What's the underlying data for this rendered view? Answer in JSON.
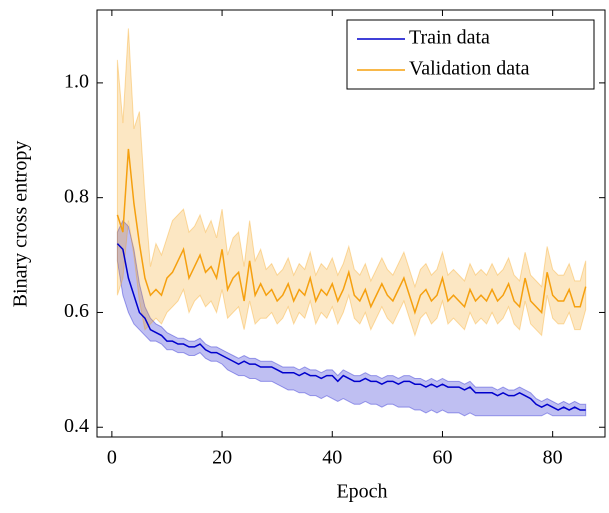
{
  "chart_data": {
    "type": "line",
    "xlabel": "Epoch",
    "ylabel": "Binary cross entropy",
    "xlim": [
      -2.7,
      89.5
    ],
    "ylim": [
      0.383,
      1.127
    ],
    "xticks": [
      0,
      20,
      40,
      60,
      80
    ],
    "yticks": [
      0.4,
      0.6,
      0.8,
      {
        "value": 1,
        "label": "1.0"
      }
    ],
    "legend": "upper right",
    "x": [
      1,
      2,
      3,
      4,
      5,
      6,
      7,
      8,
      9,
      10,
      11,
      12,
      13,
      14,
      15,
      16,
      17,
      18,
      19,
      20,
      21,
      22,
      23,
      24,
      25,
      26,
      27,
      28,
      29,
      30,
      31,
      32,
      33,
      34,
      35,
      36,
      37,
      38,
      39,
      40,
      41,
      42,
      43,
      44,
      45,
      46,
      47,
      48,
      49,
      50,
      51,
      52,
      53,
      54,
      55,
      56,
      57,
      58,
      59,
      60,
      61,
      62,
      63,
      64,
      65,
      66,
      67,
      68,
      69,
      70,
      71,
      72,
      73,
      74,
      75,
      76,
      77,
      78,
      79,
      80,
      81,
      82,
      83,
      84,
      85,
      86
    ],
    "series": [
      {
        "name": "Train data",
        "color": "#0000cc",
        "values": [
          0.72,
          0.71,
          0.66,
          0.63,
          0.6,
          0.59,
          0.57,
          0.565,
          0.56,
          0.55,
          0.55,
          0.545,
          0.545,
          0.54,
          0.54,
          0.545,
          0.535,
          0.53,
          0.53,
          0.525,
          0.52,
          0.515,
          0.51,
          0.515,
          0.51,
          0.51,
          0.505,
          0.505,
          0.505,
          0.5,
          0.495,
          0.495,
          0.495,
          0.49,
          0.495,
          0.49,
          0.49,
          0.485,
          0.49,
          0.49,
          0.48,
          0.49,
          0.485,
          0.48,
          0.48,
          0.485,
          0.48,
          0.48,
          0.475,
          0.48,
          0.48,
          0.475,
          0.48,
          0.48,
          0.475,
          0.475,
          0.47,
          0.475,
          0.47,
          0.475,
          0.47,
          0.47,
          0.47,
          0.465,
          0.47,
          0.46,
          0.46,
          0.46,
          0.46,
          0.455,
          0.46,
          0.455,
          0.455,
          0.46,
          0.455,
          0.45,
          0.44,
          0.435,
          0.44,
          0.435,
          0.43,
          0.435,
          0.43,
          0.435,
          0.43,
          0.43
        ],
        "upper": [
          0.74,
          0.76,
          0.75,
          0.71,
          0.65,
          0.61,
          0.59,
          0.58,
          0.575,
          0.565,
          0.56,
          0.555,
          0.555,
          0.55,
          0.55,
          0.555,
          0.545,
          0.54,
          0.54,
          0.535,
          0.53,
          0.525,
          0.52,
          0.525,
          0.52,
          0.52,
          0.515,
          0.515,
          0.515,
          0.51,
          0.505,
          0.505,
          0.505,
          0.5,
          0.505,
          0.5,
          0.5,
          0.495,
          0.5,
          0.5,
          0.49,
          0.5,
          0.495,
          0.49,
          0.49,
          0.495,
          0.49,
          0.49,
          0.485,
          0.49,
          0.49,
          0.485,
          0.49,
          0.49,
          0.485,
          0.485,
          0.48,
          0.485,
          0.48,
          0.485,
          0.48,
          0.48,
          0.48,
          0.475,
          0.48,
          0.47,
          0.47,
          0.47,
          0.47,
          0.465,
          0.47,
          0.465,
          0.465,
          0.47,
          0.465,
          0.46,
          0.45,
          0.445,
          0.45,
          0.445,
          0.44,
          0.445,
          0.44,
          0.445,
          0.44,
          0.44
        ],
        "lower": [
          0.69,
          0.63,
          0.6,
          0.58,
          0.57,
          0.56,
          0.55,
          0.55,
          0.545,
          0.535,
          0.535,
          0.53,
          0.53,
          0.525,
          0.525,
          0.53,
          0.52,
          0.515,
          0.515,
          0.51,
          0.5,
          0.495,
          0.49,
          0.49,
          0.485,
          0.485,
          0.48,
          0.48,
          0.48,
          0.475,
          0.47,
          0.465,
          0.465,
          0.46,
          0.46,
          0.455,
          0.455,
          0.45,
          0.455,
          0.45,
          0.445,
          0.45,
          0.445,
          0.44,
          0.44,
          0.445,
          0.44,
          0.44,
          0.435,
          0.44,
          0.44,
          0.435,
          0.435,
          0.435,
          0.43,
          0.43,
          0.425,
          0.43,
          0.425,
          0.43,
          0.425,
          0.425,
          0.425,
          0.42,
          0.425,
          0.42,
          0.42,
          0.42,
          0.42,
          0.42,
          0.42,
          0.42,
          0.42,
          0.42,
          0.42,
          0.42,
          0.42,
          0.42,
          0.425,
          0.42,
          0.42,
          0.42,
          0.42,
          0.42,
          0.42,
          0.42
        ]
      },
      {
        "name": "Validation data",
        "color": "#f5a00f",
        "values": [
          0.77,
          0.74,
          0.885,
          0.79,
          0.72,
          0.66,
          0.63,
          0.64,
          0.63,
          0.66,
          0.67,
          0.69,
          0.71,
          0.66,
          0.68,
          0.7,
          0.67,
          0.68,
          0.66,
          0.71,
          0.64,
          0.66,
          0.67,
          0.62,
          0.69,
          0.63,
          0.65,
          0.63,
          0.64,
          0.62,
          0.63,
          0.65,
          0.62,
          0.64,
          0.63,
          0.66,
          0.62,
          0.64,
          0.63,
          0.65,
          0.62,
          0.64,
          0.67,
          0.63,
          0.62,
          0.64,
          0.61,
          0.63,
          0.65,
          0.63,
          0.62,
          0.64,
          0.66,
          0.63,
          0.6,
          0.63,
          0.64,
          0.62,
          0.63,
          0.66,
          0.62,
          0.63,
          0.62,
          0.61,
          0.64,
          0.62,
          0.63,
          0.62,
          0.64,
          0.62,
          0.63,
          0.65,
          0.62,
          0.61,
          0.66,
          0.62,
          0.61,
          0.6,
          0.67,
          0.63,
          0.62,
          0.62,
          0.64,
          0.61,
          0.61,
          0.645
        ],
        "upper": [
          1.04,
          0.93,
          1.095,
          0.92,
          0.95,
          0.8,
          0.68,
          0.72,
          0.7,
          0.73,
          0.76,
          0.77,
          0.78,
          0.74,
          0.75,
          0.77,
          0.74,
          0.76,
          0.73,
          0.78,
          0.7,
          0.73,
          0.74,
          0.68,
          0.76,
          0.69,
          0.71,
          0.675,
          0.685,
          0.665,
          0.675,
          0.695,
          0.665,
          0.685,
          0.675,
          0.705,
          0.665,
          0.685,
          0.675,
          0.695,
          0.665,
          0.685,
          0.715,
          0.675,
          0.665,
          0.685,
          0.655,
          0.675,
          0.695,
          0.675,
          0.665,
          0.685,
          0.705,
          0.675,
          0.645,
          0.675,
          0.685,
          0.665,
          0.675,
          0.705,
          0.665,
          0.675,
          0.665,
          0.655,
          0.685,
          0.665,
          0.675,
          0.665,
          0.685,
          0.665,
          0.675,
          0.695,
          0.665,
          0.655,
          0.705,
          0.665,
          0.655,
          0.645,
          0.715,
          0.675,
          0.665,
          0.665,
          0.685,
          0.655,
          0.655,
          0.69
        ],
        "lower": [
          0.63,
          0.66,
          0.76,
          0.7,
          0.62,
          0.57,
          0.58,
          0.59,
          0.58,
          0.6,
          0.61,
          0.62,
          0.64,
          0.6,
          0.62,
          0.63,
          0.61,
          0.62,
          0.6,
          0.64,
          0.59,
          0.6,
          0.61,
          0.57,
          0.62,
          0.58,
          0.59,
          0.59,
          0.6,
          0.58,
          0.59,
          0.61,
          0.58,
          0.6,
          0.59,
          0.62,
          0.58,
          0.6,
          0.59,
          0.61,
          0.58,
          0.6,
          0.63,
          0.59,
          0.58,
          0.6,
          0.57,
          0.59,
          0.61,
          0.59,
          0.58,
          0.6,
          0.62,
          0.59,
          0.56,
          0.59,
          0.6,
          0.58,
          0.59,
          0.62,
          0.58,
          0.59,
          0.58,
          0.57,
          0.6,
          0.58,
          0.59,
          0.58,
          0.6,
          0.58,
          0.59,
          0.61,
          0.58,
          0.57,
          0.62,
          0.58,
          0.57,
          0.56,
          0.63,
          0.59,
          0.58,
          0.58,
          0.6,
          0.57,
          0.57,
          0.605
        ]
      }
    ]
  }
}
